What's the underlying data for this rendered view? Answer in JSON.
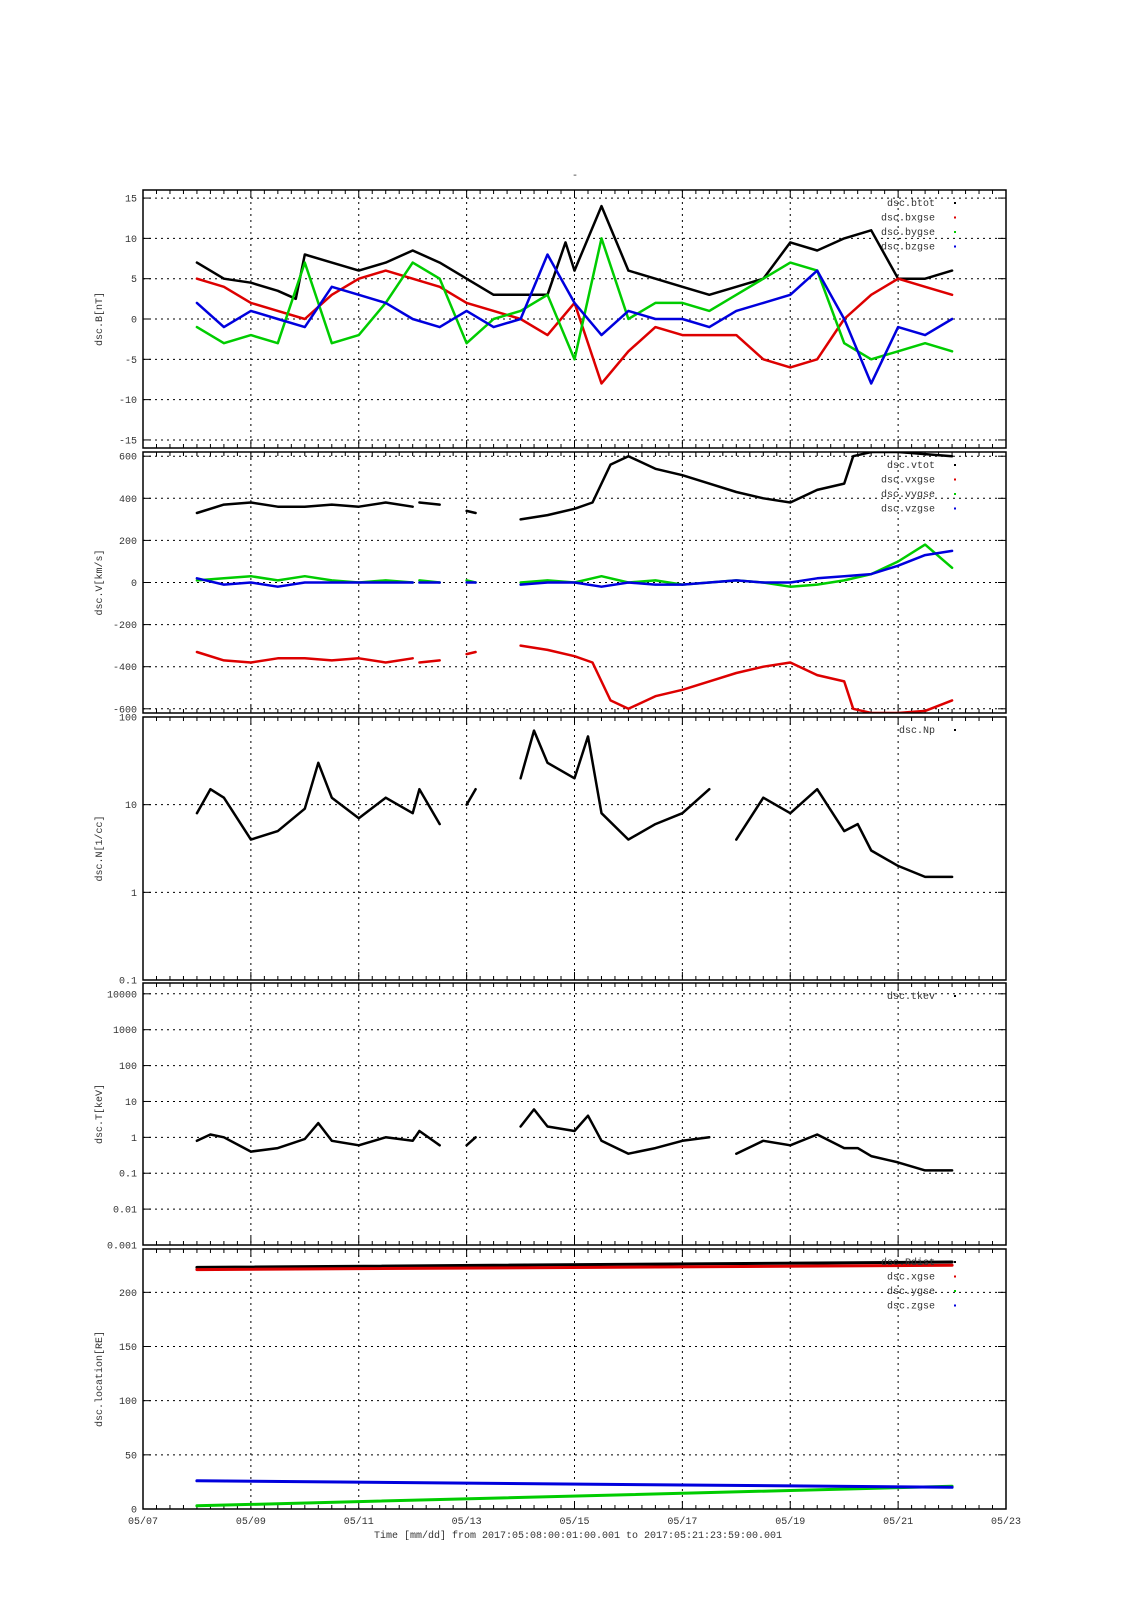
{
  "figure": {
    "title": "-",
    "xlabel": "Time [mm/dd]  from 2017:05:08:00:01:00.001  to  2017:05:21:23:59:00.001"
  },
  "x_axis": {
    "ticks": [
      {
        "day": 0,
        "label": "05/07"
      },
      {
        "day": 2,
        "label": "05/09"
      },
      {
        "day": 4,
        "label": "05/11"
      },
      {
        "day": 6,
        "label": "05/13"
      },
      {
        "day": 8,
        "label": "05/15"
      },
      {
        "day": 10,
        "label": "05/17"
      },
      {
        "day": 12,
        "label": "05/19"
      },
      {
        "day": 14,
        "label": "05/21"
      },
      {
        "day": 16,
        "label": "05/23"
      }
    ]
  },
  "colors": {
    "black": "#000000",
    "red": "#dd0000",
    "green": "#00cc00",
    "blue": "#0000dd"
  },
  "chart_data": [
    {
      "type": "scatter",
      "ylabel": "dsc.B[nT]",
      "scale": "linear",
      "ylim": [
        -16,
        16
      ],
      "xlim": [
        "05/07",
        "05/23"
      ],
      "grid": true,
      "legend_position": "top-right",
      "yticks": [
        {
          "v": -15,
          "label": "-15"
        },
        {
          "v": -10,
          "label": "-10"
        },
        {
          "v": -5,
          "label": "-5"
        },
        {
          "v": 0,
          "label": "0"
        },
        {
          "v": 5,
          "label": "5"
        },
        {
          "v": 10,
          "label": "10"
        },
        {
          "v": 15,
          "label": "15"
        }
      ],
      "series": [
        {
          "name": "dsc.btot",
          "color": "#000000",
          "x": [
            "05/08",
            "05/08 12:00",
            "05/09",
            "05/09 12:00",
            "05/09 20:00",
            "05/10",
            "05/10 12:00",
            "05/11",
            "05/11 12:00",
            "05/12",
            "05/12 12:00",
            "05/13",
            "05/13 12:00",
            "05/14",
            "05/14 12:00",
            "05/14 20:00",
            "05/15",
            "05/15 12:00",
            "05/16",
            "05/16 12:00",
            "05/17",
            "05/17 12:00",
            "05/18",
            "05/18 12:00",
            "05/19",
            "05/19 12:00",
            "05/20",
            "05/20 12:00",
            "05/21",
            "05/21 12:00",
            "05/22"
          ],
          "y": [
            7,
            5,
            4.5,
            3.5,
            2.5,
            8,
            7,
            6,
            7,
            8.5,
            7,
            5,
            3,
            3,
            3,
            9.5,
            6,
            14,
            6,
            5,
            4,
            3,
            4,
            5,
            9.5,
            8.5,
            10,
            11,
            5,
            5,
            6
          ]
        },
        {
          "name": "dsc.bxgse",
          "color": "#dd0000",
          "x": [
            "05/08",
            "05/08 12:00",
            "05/09",
            "05/09 12:00",
            "05/10",
            "05/10 12:00",
            "05/11",
            "05/11 12:00",
            "05/12",
            "05/12 12:00",
            "05/13",
            "05/13 12:00",
            "05/14",
            "05/14 12:00",
            "05/15",
            "05/15 12:00",
            "05/16",
            "05/16 12:00",
            "05/17",
            "05/17 12:00",
            "05/18",
            "05/18 12:00",
            "05/19",
            "05/19 12:00",
            "05/20",
            "05/20 12:00",
            "05/21",
            "05/21 12:00",
            "05/22"
          ],
          "y": [
            5,
            4,
            2,
            1,
            0,
            3,
            5,
            6,
            5,
            4,
            2,
            1,
            0,
            -2,
            2,
            -8,
            -4,
            -1,
            -2,
            -2,
            -2,
            -5,
            -6,
            -5,
            0,
            3,
            5,
            4,
            3
          ]
        },
        {
          "name": "dsc.bygse",
          "color": "#00cc00",
          "x": [
            "05/08",
            "05/08 12:00",
            "05/09",
            "05/09 12:00",
            "05/10",
            "05/10 12:00",
            "05/11",
            "05/11 12:00",
            "05/12",
            "05/12 12:00",
            "05/13",
            "05/13 12:00",
            "05/14",
            "05/14 12:00",
            "05/15",
            "05/15 12:00",
            "05/16",
            "05/16 12:00",
            "05/17",
            "05/17 12:00",
            "05/18",
            "05/18 12:00",
            "05/19",
            "05/19 12:00",
            "05/20",
            "05/20 12:00",
            "05/21",
            "05/21 12:00",
            "05/22"
          ],
          "y": [
            -1,
            -3,
            -2,
            -3,
            7,
            -3,
            -2,
            2,
            7,
            5,
            -3,
            0,
            1,
            3,
            -5,
            10,
            0,
            2,
            2,
            1,
            3,
            5,
            7,
            6,
            -3,
            -5,
            -4,
            -3,
            -4
          ]
        },
        {
          "name": "dsc.bzgse",
          "color": "#0000dd",
          "x": [
            "05/08",
            "05/08 12:00",
            "05/09",
            "05/09 12:00",
            "05/10",
            "05/10 12:00",
            "05/11",
            "05/11 12:00",
            "05/12",
            "05/12 12:00",
            "05/13",
            "05/13 12:00",
            "05/14",
            "05/14 12:00",
            "05/15",
            "05/15 12:00",
            "05/16",
            "05/16 12:00",
            "05/17",
            "05/17 12:00",
            "05/18",
            "05/18 12:00",
            "05/19",
            "05/19 12:00",
            "05/20",
            "05/20 12:00",
            "05/21",
            "05/21 12:00",
            "05/22"
          ],
          "y": [
            2,
            -1,
            1,
            0,
            -1,
            4,
            3,
            2,
            0,
            -1,
            1,
            -1,
            0,
            8,
            2,
            -2,
            1,
            0,
            0,
            -1,
            1,
            2,
            3,
            6,
            0,
            -8,
            -1,
            -2,
            0
          ]
        }
      ]
    },
    {
      "type": "scatter",
      "ylabel": "dsc.V[km/s]",
      "scale": "linear",
      "ylim": [
        -620,
        620
      ],
      "xlim": [
        "05/07",
        "05/23"
      ],
      "grid": true,
      "legend_position": "top-right",
      "yticks": [
        {
          "v": -600,
          "label": "-600"
        },
        {
          "v": -400,
          "label": "-400"
        },
        {
          "v": -200,
          "label": "-200"
        },
        {
          "v": 0,
          "label": "0"
        },
        {
          "v": 200,
          "label": "200"
        },
        {
          "v": 400,
          "label": "400"
        },
        {
          "v": 600,
          "label": "600"
        }
      ],
      "series": [
        {
          "name": "dsc.vtot",
          "color": "#000000",
          "x": [
            "05/08",
            "05/08 12:00",
            "05/09",
            "05/09 12:00",
            "05/10",
            "05/10 12:00",
            "05/11",
            "05/11 12:00",
            "05/12",
            null,
            "05/12 03:00",
            "05/12 12:00",
            null,
            "05/13",
            "05/13 04:00",
            null,
            "05/14",
            "05/14 12:00",
            "05/15",
            "05/15 08:00",
            "05/15 16:00",
            "05/16",
            "05/16 12:00",
            "05/17",
            "05/17 12:00",
            "05/18",
            "05/18 12:00",
            "05/19",
            "05/19 12:00",
            "05/20",
            "05/20 04:00",
            "05/20 12:00",
            "05/21",
            "05/21 12:00",
            "05/22"
          ],
          "y": [
            330,
            370,
            380,
            360,
            360,
            370,
            360,
            380,
            360,
            null,
            380,
            370,
            null,
            340,
            330,
            null,
            300,
            320,
            350,
            380,
            560,
            600,
            540,
            510,
            470,
            430,
            400,
            380,
            440,
            470,
            600,
            620,
            620,
            610,
            600
          ]
        },
        {
          "name": "dsc.vxgse",
          "color": "#dd0000",
          "x": [
            "05/08",
            "05/08 12:00",
            "05/09",
            "05/09 12:00",
            "05/10",
            "05/10 12:00",
            "05/11",
            "05/11 12:00",
            "05/12",
            null,
            "05/12 03:00",
            "05/12 12:00",
            null,
            "05/13",
            "05/13 04:00",
            null,
            "05/14",
            "05/14 12:00",
            "05/15",
            "05/15 08:00",
            "05/15 16:00",
            "05/16",
            "05/16 12:00",
            "05/17",
            "05/17 12:00",
            "05/18",
            "05/18 12:00",
            "05/19",
            "05/19 12:00",
            "05/20",
            "05/20 04:00",
            "05/20 12:00",
            "05/21",
            "05/21 12:00",
            "05/22"
          ],
          "y": [
            -330,
            -370,
            -380,
            -360,
            -360,
            -370,
            -360,
            -380,
            -360,
            null,
            -380,
            -370,
            null,
            -340,
            -330,
            null,
            -300,
            -320,
            -350,
            -380,
            -560,
            -600,
            -540,
            -510,
            -470,
            -430,
            -400,
            -380,
            -440,
            -470,
            -600,
            -620,
            -620,
            -610,
            -560
          ]
        },
        {
          "name": "dsc.vygse",
          "color": "#00cc00",
          "x": [
            "05/08",
            "05/08 12:00",
            "05/09",
            "05/09 12:00",
            "05/10",
            "05/10 12:00",
            "05/11",
            "05/11 12:00",
            "05/12",
            null,
            "05/12 03:00",
            "05/12 12:00",
            null,
            "05/13",
            "05/13 04:00",
            null,
            "05/14",
            "05/14 12:00",
            "05/15",
            "05/15 12:00",
            "05/16",
            "05/16 12:00",
            "05/17",
            "05/17 12:00",
            "05/18",
            "05/18 12:00",
            "05/19",
            "05/19 12:00",
            "05/20",
            "05/20 12:00",
            "05/21",
            "05/21 12:00",
            "05/22"
          ],
          "y": [
            10,
            20,
            30,
            10,
            30,
            10,
            0,
            10,
            0,
            null,
            10,
            0,
            null,
            10,
            0,
            null,
            0,
            10,
            0,
            30,
            0,
            10,
            -10,
            0,
            10,
            0,
            -20,
            -10,
            10,
            40,
            100,
            180,
            70
          ]
        },
        {
          "name": "dsc.vzgse",
          "color": "#0000dd",
          "x": [
            "05/08",
            "05/08 12:00",
            "05/09",
            "05/09 12:00",
            "05/10",
            "05/10 12:00",
            "05/11",
            "05/11 12:00",
            "05/12",
            null,
            "05/12 03:00",
            "05/12 12:00",
            null,
            "05/13",
            "05/13 04:00",
            null,
            "05/14",
            "05/14 12:00",
            "05/15",
            "05/15 12:00",
            "05/16",
            "05/16 12:00",
            "05/17",
            "05/17 12:00",
            "05/18",
            "05/18 12:00",
            "05/19",
            "05/19 12:00",
            "05/20",
            "05/20 12:00",
            "05/21",
            "05/21 12:00",
            "05/22"
          ],
          "y": [
            20,
            -10,
            0,
            -20,
            0,
            0,
            0,
            0,
            0,
            null,
            0,
            0,
            null,
            0,
            0,
            null,
            -10,
            0,
            0,
            -20,
            0,
            -10,
            -10,
            0,
            10,
            0,
            0,
            20,
            30,
            40,
            80,
            130,
            150
          ]
        }
      ]
    },
    {
      "type": "scatter",
      "ylabel": "dsc.N[1/cc]",
      "scale": "log",
      "ylim": [
        0.1,
        100
      ],
      "xlim": [
        "05/07",
        "05/23"
      ],
      "grid": true,
      "legend_position": "top-right",
      "yticks": [
        {
          "v": 0.1,
          "label": "0.1"
        },
        {
          "v": 1,
          "label": "1"
        },
        {
          "v": 10,
          "label": "10"
        },
        {
          "v": 100,
          "label": "100"
        }
      ],
      "series": [
        {
          "name": "dsc.Np",
          "color": "#000000",
          "x": [
            "05/08",
            "05/08 06:00",
            "05/08 12:00",
            "05/09",
            "05/09 12:00",
            "05/10",
            "05/10 06:00",
            "05/10 12:00",
            "05/11",
            "05/11 12:00",
            "05/12",
            "05/12 03:00",
            "05/12 12:00",
            null,
            "05/13",
            "05/13 04:00",
            null,
            "05/14",
            "05/14 06:00",
            "05/14 12:00",
            "05/15",
            "05/15 06:00",
            "05/15 12:00",
            "05/16",
            "05/16 12:00",
            "05/17",
            "05/17 12:00",
            null,
            "05/18",
            "05/18 12:00",
            "05/19",
            "05/19 12:00",
            "05/20",
            "05/20 06:00",
            "05/20 12:00",
            "05/21",
            "05/21 12:00",
            "05/22"
          ],
          "y": [
            8,
            15,
            12,
            4,
            5,
            9,
            30,
            12,
            7,
            12,
            8,
            15,
            6,
            null,
            10,
            15,
            null,
            20,
            70,
            30,
            20,
            60,
            8,
            4,
            6,
            8,
            15,
            null,
            4,
            12,
            8,
            15,
            5,
            6,
            3,
            2,
            1.5,
            1.5
          ]
        }
      ]
    },
    {
      "type": "scatter",
      "ylabel": "dsc.T[keV]",
      "scale": "log",
      "ylim": [
        0.001,
        20000
      ],
      "xlim": [
        "05/07",
        "05/23"
      ],
      "grid": true,
      "legend_position": "top-right",
      "yticks": [
        {
          "v": 0.001,
          "label": "0.001"
        },
        {
          "v": 0.01,
          "label": "0.01"
        },
        {
          "v": 0.1,
          "label": "0.1"
        },
        {
          "v": 1,
          "label": "1"
        },
        {
          "v": 10,
          "label": "10"
        },
        {
          "v": 100,
          "label": "100"
        },
        {
          "v": 1000,
          "label": "1000"
        },
        {
          "v": 10000,
          "label": "10000"
        }
      ],
      "series": [
        {
          "name": "dsc.tkev",
          "color": "#000000",
          "x": [
            "05/08",
            "05/08 06:00",
            "05/08 12:00",
            "05/09",
            "05/09 12:00",
            "05/10",
            "05/10 06:00",
            "05/10 12:00",
            "05/11",
            "05/11 12:00",
            "05/12",
            "05/12 03:00",
            "05/12 12:00",
            null,
            "05/13",
            "05/13 04:00",
            null,
            "05/14",
            "05/14 06:00",
            "05/14 12:00",
            "05/15",
            "05/15 06:00",
            "05/15 12:00",
            "05/16",
            "05/16 12:00",
            "05/17",
            "05/17 12:00",
            null,
            "05/18",
            "05/18 12:00",
            "05/19",
            "05/19 12:00",
            "05/20",
            "05/20 06:00",
            "05/20 12:00",
            "05/21",
            "05/21 12:00",
            "05/22"
          ],
          "y": [
            0.8,
            1.2,
            1,
            0.4,
            0.5,
            0.9,
            2.5,
            0.8,
            0.6,
            1,
            0.8,
            1.5,
            0.6,
            null,
            0.6,
            1,
            null,
            2,
            6,
            2,
            1.5,
            4,
            0.8,
            0.35,
            0.5,
            0.8,
            1,
            null,
            0.35,
            0.8,
            0.6,
            1.2,
            0.5,
            0.5,
            0.3,
            0.2,
            0.12,
            0.12
          ]
        }
      ]
    },
    {
      "type": "line",
      "ylabel": "dsc.location[RE]",
      "scale": "linear",
      "ylim": [
        0,
        240
      ],
      "xlim": [
        "05/07",
        "05/23"
      ],
      "grid": true,
      "legend_position": "top-right",
      "yticks": [
        {
          "v": 0,
          "label": "0"
        },
        {
          "v": 50,
          "label": "50"
        },
        {
          "v": 100,
          "label": "100"
        },
        {
          "v": 150,
          "label": "150"
        },
        {
          "v": 200,
          "label": "200"
        }
      ],
      "series": [
        {
          "name": "dsc.Rdist",
          "color": "#000000",
          "x": [
            "05/08",
            "05/22"
          ],
          "y": [
            223,
            228
          ]
        },
        {
          "name": "dsc.xgse",
          "color": "#dd0000",
          "x": [
            "05/08",
            "05/22"
          ],
          "y": [
            221,
            225
          ]
        },
        {
          "name": "dsc.ygse",
          "color": "#00cc00",
          "x": [
            "05/08",
            "05/22"
          ],
          "y": [
            3,
            21
          ]
        },
        {
          "name": "dsc.zgse",
          "color": "#0000dd",
          "x": [
            "05/08",
            "05/22"
          ],
          "y": [
            26,
            20
          ]
        }
      ]
    }
  ]
}
